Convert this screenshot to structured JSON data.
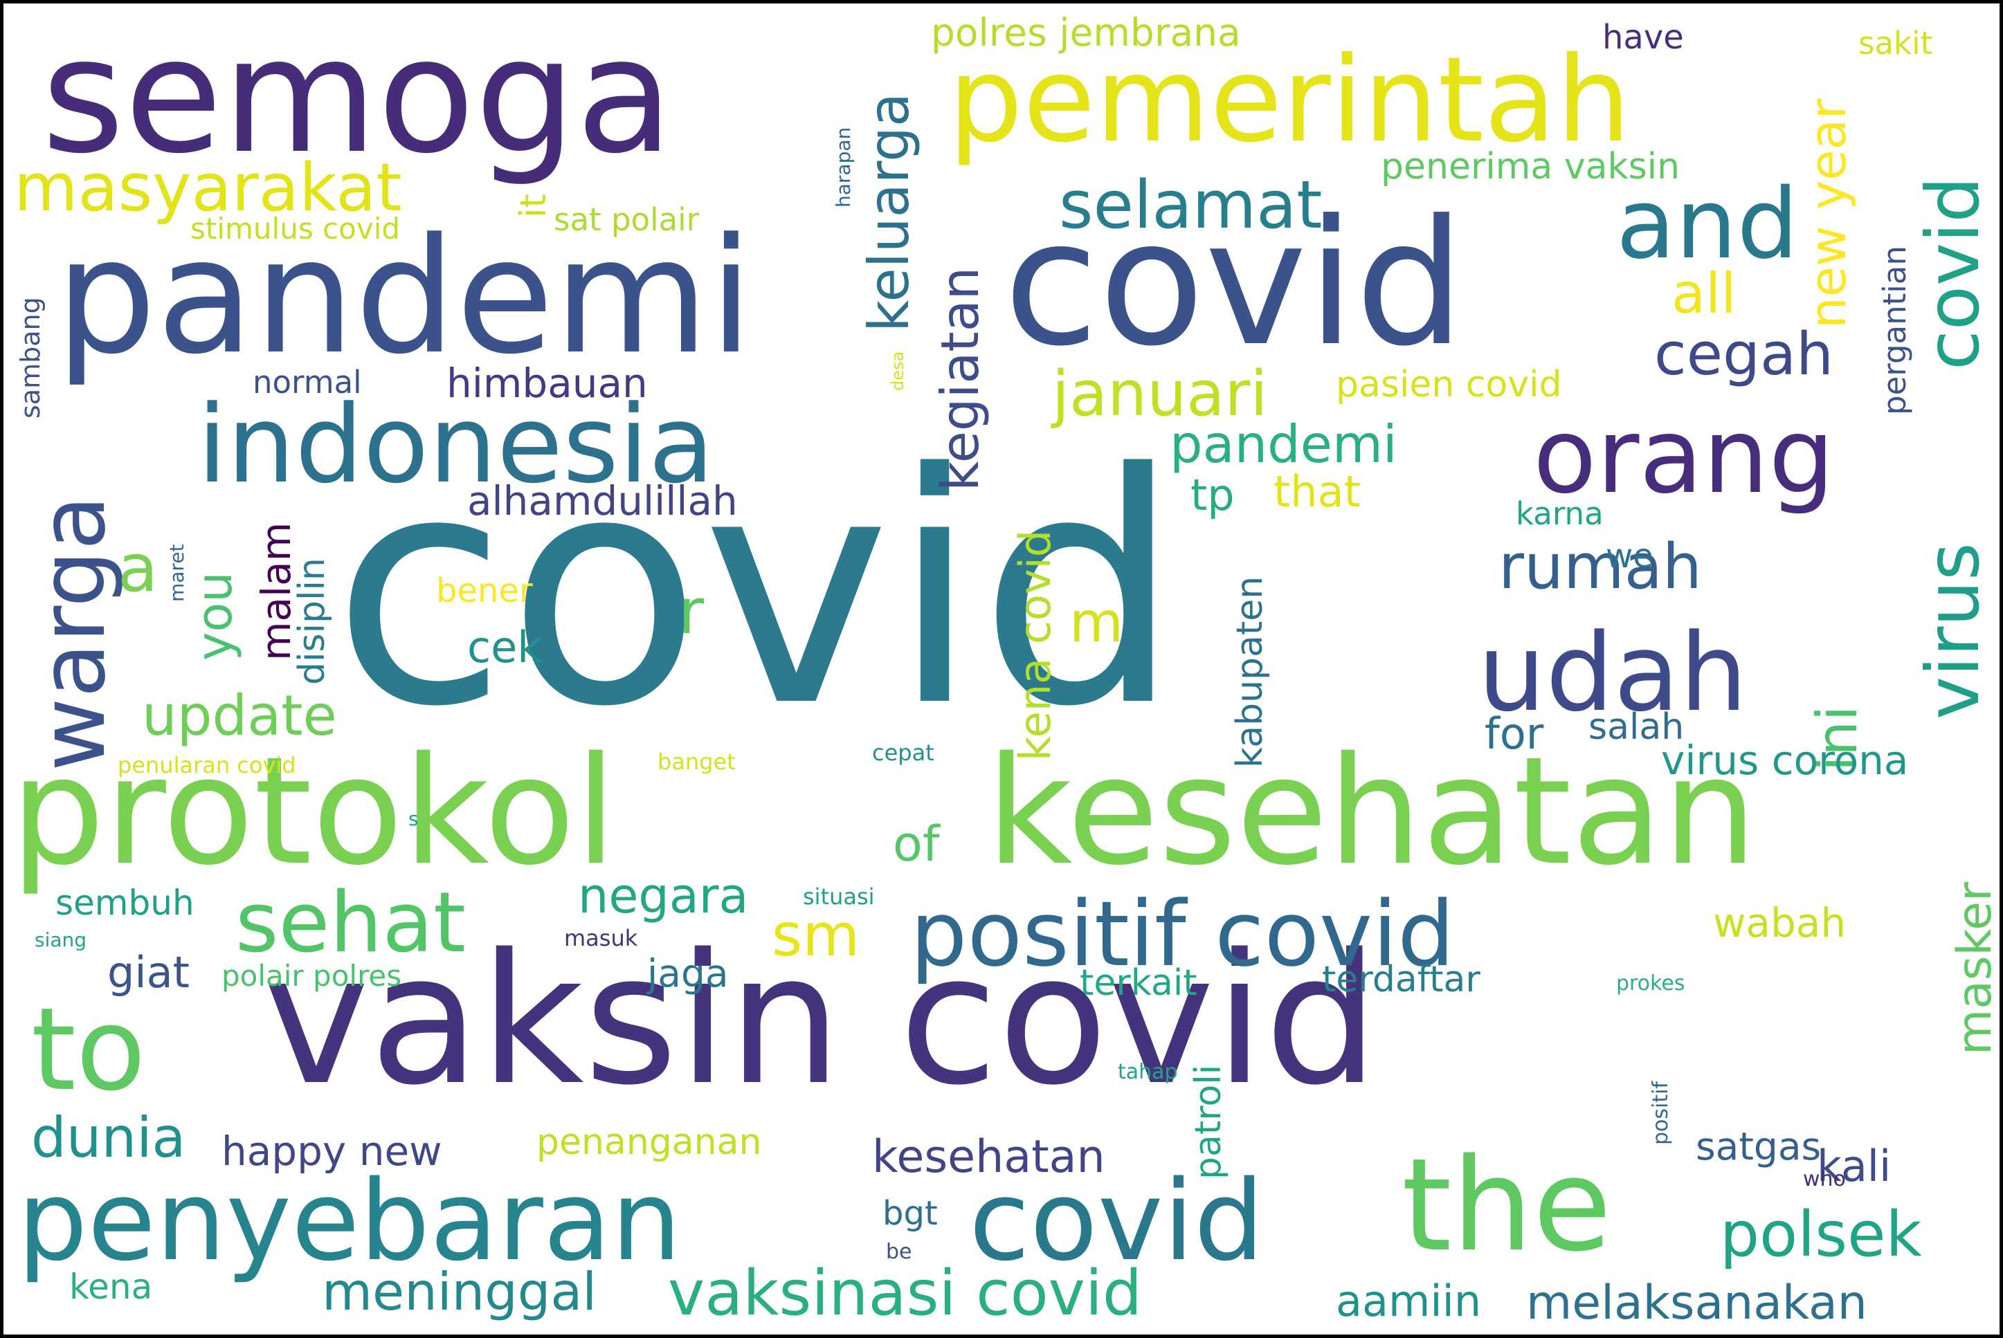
{
  "words": [
    {
      "text": "covid",
      "color": "#2c7a8e"
    },
    {
      "text": "semoga",
      "color": "#472c7a"
    },
    {
      "text": "pandemi",
      "color": "#3b528b"
    },
    {
      "text": "covid",
      "color": "#3b528b"
    },
    {
      "text": "pemerintah",
      "color": "#e5e419"
    },
    {
      "text": "vaksin covid",
      "color": "#46337e"
    },
    {
      "text": "protokol",
      "color": "#7ad151"
    },
    {
      "text": "kesehatan",
      "color": "#7ad151"
    },
    {
      "text": "indonesia",
      "color": "#2c728e"
    },
    {
      "text": "penyebaran",
      "color": "#25848e"
    },
    {
      "text": "covid",
      "color": "#2a788e"
    },
    {
      "text": "the",
      "color": "#5ec962"
    },
    {
      "text": "positif covid",
      "color": "#31688e"
    },
    {
      "text": "udah",
      "color": "#3e4a89"
    },
    {
      "text": "orang",
      "color": "#472d7b"
    },
    {
      "text": "warga",
      "color": "#3b528b"
    },
    {
      "text": "to",
      "color": "#5ec962"
    },
    {
      "text": "and",
      "color": "#2a788e"
    },
    {
      "text": "sehat",
      "color": "#52c569"
    },
    {
      "text": "masyarakat",
      "color": "#e2e418"
    },
    {
      "text": "selamat",
      "color": "#277f8e"
    },
    {
      "text": "virus",
      "color": "#1f9e89"
    },
    {
      "text": "covid",
      "color": "#1fa187"
    },
    {
      "text": "rumah",
      "color": "#355f8d"
    },
    {
      "text": "polsek",
      "color": "#20a486"
    },
    {
      "text": "vaksinasi covid",
      "color": "#2ab07f"
    },
    {
      "text": "dunia",
      "color": "#21918c"
    },
    {
      "text": "update",
      "color": "#6ece58"
    },
    {
      "text": "keluarga",
      "color": "#2c718e"
    },
    {
      "text": "januari",
      "color": "#c2df23"
    },
    {
      "text": "cegah",
      "color": "#3e4989"
    },
    {
      "text": "pandemi",
      "color": "#2ab07f"
    },
    {
      "text": "kegiatan",
      "color": "#3e4c8a"
    },
    {
      "text": "meninggal",
      "color": "#23898e"
    },
    {
      "text": "negara",
      "color": "#22a785"
    },
    {
      "text": "new year",
      "color": "#fde725"
    },
    {
      "text": "ini",
      "color": "#4ac16d"
    },
    {
      "text": "a",
      "color": "#7ad151"
    },
    {
      "text": "all",
      "color": "#f1e51d"
    },
    {
      "text": "masker",
      "color": "#5ec962"
    },
    {
      "text": "melaksanakan",
      "color": "#2d718e"
    },
    {
      "text": "kesehatan",
      "color": "#414487"
    },
    {
      "text": "kena covid",
      "color": "#b5de2b"
    },
    {
      "text": "aamiin",
      "color": "#20928c"
    },
    {
      "text": "virus corona",
      "color": "#1f988b"
    },
    {
      "text": "himbauan",
      "color": "#443983"
    },
    {
      "text": "alhamdulillah",
      "color": "#414487"
    },
    {
      "text": "you",
      "color": "#4ac16d"
    },
    {
      "text": "happy new",
      "color": "#3f4788"
    },
    {
      "text": "sm",
      "color": "#e7e419"
    },
    {
      "text": "of",
      "color": "#54c568"
    },
    {
      "text": "kali",
      "color": "#3e4a89"
    },
    {
      "text": "giat",
      "color": "#3a548c"
    },
    {
      "text": "satgas",
      "color": "#355f8d"
    },
    {
      "text": "r",
      "color": "#5ec962"
    },
    {
      "text": "m",
      "color": "#d2e21b"
    },
    {
      "text": "tp",
      "color": "#25ac82"
    },
    {
      "text": "that",
      "color": "#e2e418"
    },
    {
      "text": "wabah",
      "color": "#c8e020"
    },
    {
      "text": "malam",
      "color": "#440154"
    },
    {
      "text": "for",
      "color": "#2d708e"
    },
    {
      "text": "salah",
      "color": "#2f6c8e"
    },
    {
      "text": "it",
      "color": "#cde11d"
    },
    {
      "text": "jaga",
      "color": "#2a768e"
    },
    {
      "text": "patroli",
      "color": "#21a685"
    },
    {
      "text": "penerima vaksin",
      "color": "#5ec962"
    },
    {
      "text": "kabupaten",
      "color": "#2c728e"
    },
    {
      "text": "cek",
      "color": "#20928c"
    },
    {
      "text": "pasien covid",
      "color": "#d8e219"
    },
    {
      "text": "polres jembrana",
      "color": "#b5de2b"
    },
    {
      "text": "pergantian",
      "color": "#3b528b"
    },
    {
      "text": "penanganan",
      "color": "#c0df25"
    },
    {
      "text": "terkait",
      "color": "#22a785"
    },
    {
      "text": "terdaftar",
      "color": "#277f8e"
    },
    {
      "text": "disiplin",
      "color": "#287c8e"
    },
    {
      "text": "sembuh",
      "color": "#1fa187"
    },
    {
      "text": "kena",
      "color": "#2ab07f"
    },
    {
      "text": "normal",
      "color": "#3b528b"
    },
    {
      "text": "stimulus covid",
      "color": "#c2df23"
    },
    {
      "text": "sat polair",
      "color": "#addc30"
    },
    {
      "text": "polair polres",
      "color": "#4ac16d"
    },
    {
      "text": "bener",
      "color": "#fde725"
    },
    {
      "text": "bgt",
      "color": "#2e6e8e"
    },
    {
      "text": "karna",
      "color": "#21a685"
    },
    {
      "text": "we",
      "color": "#2c718e"
    },
    {
      "text": "have",
      "color": "#472d7b"
    },
    {
      "text": "sakit",
      "color": "#d2e21b"
    },
    {
      "text": "sambang",
      "color": "#3b528b"
    },
    {
      "text": "harapan",
      "color": "#31688e"
    },
    {
      "text": "maret",
      "color": "#31688e"
    },
    {
      "text": "penularan covid",
      "color": "#d8e219"
    },
    {
      "text": "banget",
      "color": "#d2e21b"
    },
    {
      "text": "cepat",
      "color": "#21918c"
    },
    {
      "text": "desa",
      "color": "#d2e21b"
    },
    {
      "text": "situasi",
      "color": "#1fa088"
    },
    {
      "text": "masuk",
      "color": "#46337e"
    },
    {
      "text": "siang",
      "color": "#20a486"
    },
    {
      "text": "tahap",
      "color": "#20a486"
    },
    {
      "text": "positif",
      "color": "#31688e"
    },
    {
      "text": "prokes",
      "color": "#2ab07f"
    },
    {
      "text": "who",
      "color": "#472d7b"
    },
    {
      "text": "be",
      "color": "#3b528b"
    },
    {
      "text": "s",
      "color": "#1fa088"
    }
  ]
}
